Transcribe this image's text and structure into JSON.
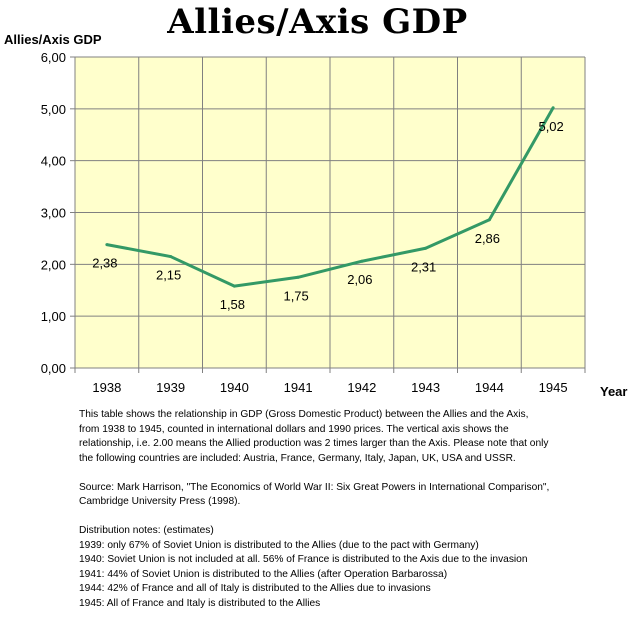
{
  "chart_data": {
    "type": "line",
    "title": "Allies/Axis GDP",
    "ylabel": "Allies/Axis GDP",
    "xlabel": "Year",
    "categories": [
      "1938",
      "1939",
      "1940",
      "1941",
      "1942",
      "1943",
      "1944",
      "1945"
    ],
    "values": [
      2.38,
      2.15,
      1.58,
      1.75,
      2.06,
      2.31,
      2.86,
      5.02
    ],
    "data_labels": [
      "2,38",
      "2,15",
      "1,58",
      "1,75",
      "2,06",
      "2,31",
      "2,86",
      "5,02"
    ],
    "ylim": [
      0,
      6
    ],
    "yticks": [
      "0,00",
      "1,00",
      "2,00",
      "3,00",
      "4,00",
      "5,00",
      "6,00"
    ],
    "grid": true,
    "line_color": "#339966",
    "plot_background": "#ffffcc"
  },
  "notes": {
    "description": [
      "This table shows the relationship in GDP (Gross Domestic Product) between the Allies and the Axis,",
      "from 1938 to 1945, counted in international dollars and 1990 prices. The vertical axis shows the",
      "relationship, i.e. 2.00 means the Allied production was 2 times larger than the Axis. Please note that only",
      "the following countries are included: Austria, France, Germany, Italy, Japan, UK, USA and USSR."
    ],
    "source": [
      "Source: Mark Harrison, \"The Economics of World War II: Six Great Powers in International Comparison\",",
      "Cambridge University Press (1998)."
    ],
    "distribution": [
      "Distribution notes: (estimates)",
      "1939: only 67% of Soviet Union is distributed to the Allies (due to the pact with Germany)",
      "1940: Soviet Union is not included at all. 56% of France is distributed to the Axis due to the invasion",
      "1941: 44% of Soviet Union is distributed to the Allies (after Operation Barbarossa)",
      "1944: 42% of France and all of Italy is distributed to the Allies due to invasions",
      "1945: All of France and Italy is distributed to the Allies"
    ]
  }
}
